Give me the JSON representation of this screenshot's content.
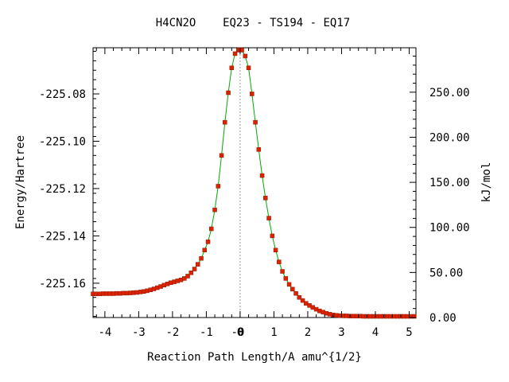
{
  "chart_data": {
    "type": "line",
    "title": "H4CN2O    EQ23 - TS194 - EQ17",
    "xlabel": "Reaction Path Length/A amu^{1/2}",
    "ylabel_left": "Energy/Hartree",
    "ylabel_right": "kJ/mol",
    "xlim": [
      -4.35,
      5.2
    ],
    "ylim_left": [
      -225.1745,
      -225.0605
    ],
    "ylim_right": [
      0,
      299.3
    ],
    "x_ticks": [
      "-4",
      "-3",
      "-2",
      "-1",
      "-0",
      "0",
      "1",
      "2",
      "3",
      "4",
      "5"
    ],
    "x_tick_values": [
      -4,
      -3,
      -2,
      -1,
      -0.07,
      0,
      1,
      2,
      3,
      4,
      5
    ],
    "y_left_ticks": [
      "-225.08",
      "-225.10",
      "-225.12",
      "-225.14",
      "-225.16"
    ],
    "y_left_tick_values": [
      -225.08,
      -225.1,
      -225.12,
      -225.14,
      -225.16
    ],
    "y_right_ticks": [
      "250.00",
      "200.00",
      "150.00",
      "100.00",
      "50.00",
      "0.00"
    ],
    "y_right_tick_values": [
      250,
      200,
      150,
      100,
      50,
      0
    ],
    "grid": false,
    "ts_line_x": 0,
    "colors": {
      "line": "#00aa00",
      "marker": "#dd2200",
      "ts_line": "#999999"
    },
    "series": [
      {
        "x": [
          -4.35,
          -4.25,
          -4.15,
          -4.05,
          -3.95,
          -3.85,
          -3.75,
          -3.65,
          -3.55,
          -3.45,
          -3.35,
          -3.25,
          -3.15,
          -3.05,
          -2.95,
          -2.85,
          -2.75,
          -2.65,
          -2.55,
          -2.45,
          -2.35,
          -2.25,
          -2.15,
          -2.05,
          -1.95,
          -1.85,
          -1.75,
          -1.65,
          -1.55,
          -1.45,
          -1.35,
          -1.25,
          -1.15,
          -1.05,
          -0.95,
          -0.85,
          -0.75,
          -0.65,
          -0.55,
          -0.45,
          -0.35,
          -0.25,
          -0.15,
          -0.05,
          0.0,
          0.05,
          0.15,
          0.25,
          0.35,
          0.45,
          0.55,
          0.65,
          0.75,
          0.85,
          0.95,
          1.05,
          1.15,
          1.25,
          1.35,
          1.45,
          1.55,
          1.65,
          1.75,
          1.85,
          1.95,
          2.05,
          2.15,
          2.25,
          2.35,
          2.45,
          2.55,
          2.65,
          2.75,
          2.85,
          2.95,
          3.05,
          3.15,
          3.25,
          3.35,
          3.45,
          3.55,
          3.65,
          3.75,
          3.85,
          3.95,
          4.05,
          4.15,
          4.25,
          4.35,
          4.45,
          4.55,
          4.65,
          4.75,
          4.85,
          4.95,
          5.05,
          5.15
        ],
        "y": [
          -225.1645,
          -225.1645,
          -225.1645,
          -225.1644,
          -225.1644,
          -225.1644,
          -225.1644,
          -225.1643,
          -225.1643,
          -225.1642,
          -225.1642,
          -225.1641,
          -225.164,
          -225.1639,
          -225.1637,
          -225.1635,
          -225.1632,
          -225.1628,
          -225.1624,
          -225.1619,
          -225.1614,
          -225.1608,
          -225.1603,
          -225.1598,
          -225.1594,
          -225.159,
          -225.1586,
          -225.158,
          -225.157,
          -225.1556,
          -225.154,
          -225.152,
          -225.1495,
          -225.146,
          -225.1425,
          -225.137,
          -225.129,
          -225.119,
          -225.106,
          -225.092,
          -225.0795,
          -225.069,
          -225.063,
          -225.0615,
          -225.0613,
          -225.0615,
          -225.064,
          -225.069,
          -225.08,
          -225.092,
          -225.1035,
          -225.1145,
          -225.124,
          -225.1325,
          -225.14,
          -225.146,
          -225.151,
          -225.155,
          -225.158,
          -225.1605,
          -225.1625,
          -225.1643,
          -225.166,
          -225.1673,
          -225.1685,
          -225.1694,
          -225.1702,
          -225.171,
          -225.1717,
          -225.1722,
          -225.1727,
          -225.1731,
          -225.1734,
          -225.1736,
          -225.1737,
          -225.1738,
          -225.1738,
          -225.1739,
          -225.1739,
          -225.1739,
          -225.1739,
          -225.174,
          -225.174,
          -225.174,
          -225.174,
          -225.174,
          -225.174,
          -225.174,
          -225.174,
          -225.174,
          -225.174,
          -225.174,
          -225.174,
          -225.174,
          -225.174,
          -225.174,
          -225.174
        ]
      }
    ]
  }
}
